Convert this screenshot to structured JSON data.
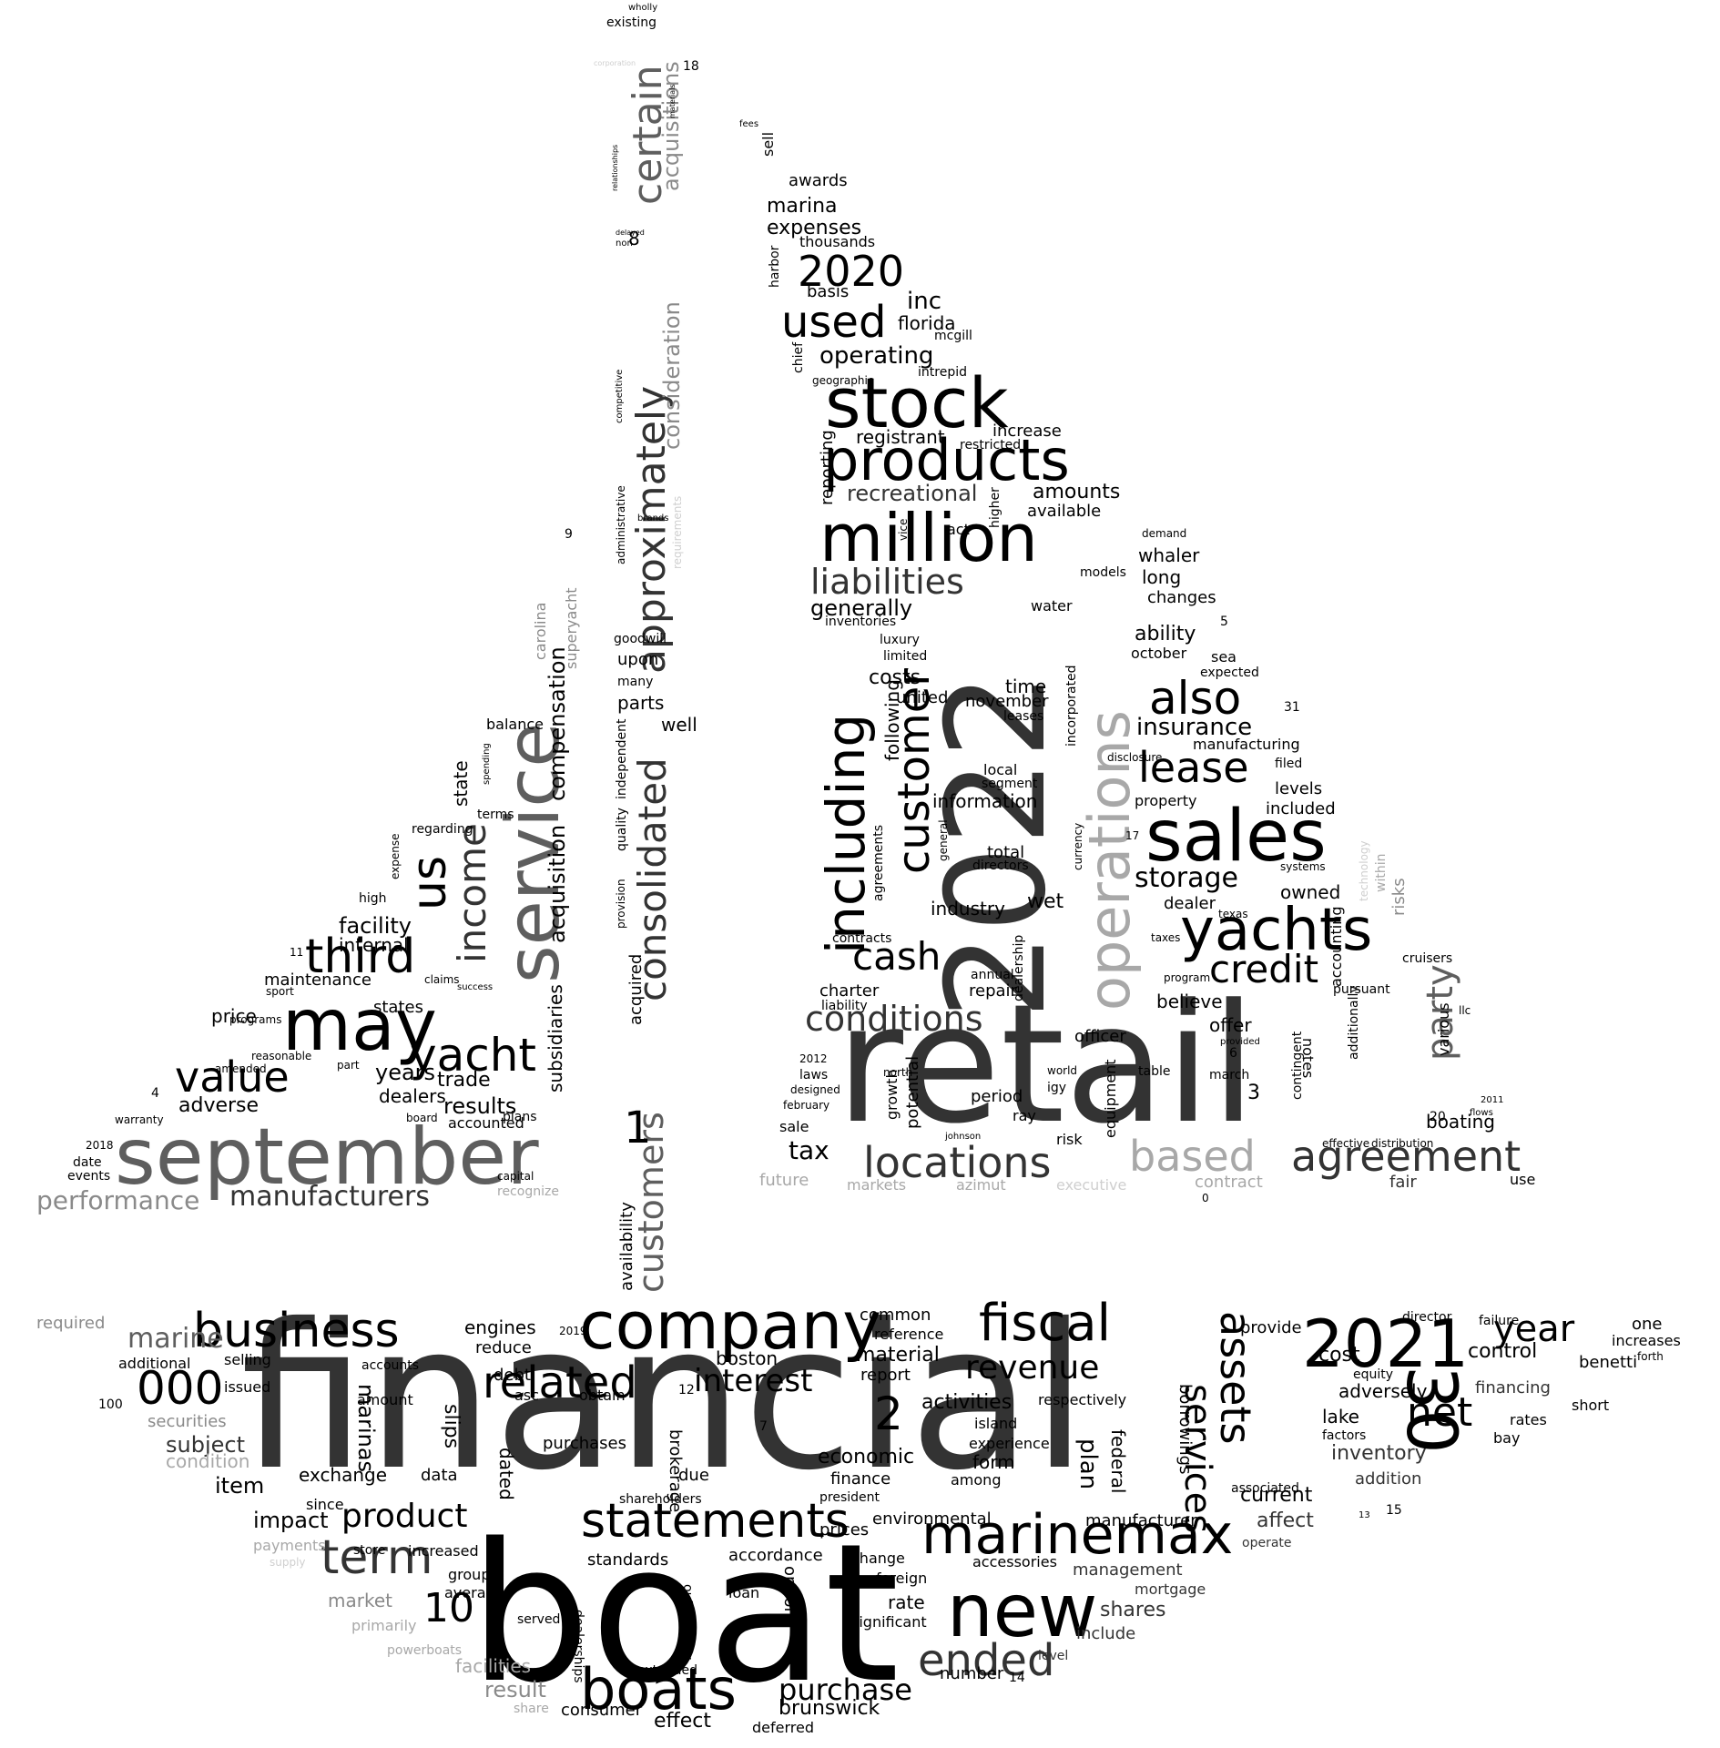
{
  "words": {
    "financial": "financial",
    "boat": "boat",
    "retail": "retail",
    "y2022": "2022",
    "september": "september",
    "company": "company",
    "stock": "stock",
    "million": "million",
    "sales": "sales",
    "products": "products",
    "yachts": "yachts",
    "marinemax": "marinemax",
    "service": "service",
    "may": "may",
    "n30": "30",
    "y2021": "2021",
    "new": "new",
    "statements": "statements",
    "boats": "boats",
    "business": "business",
    "fiscal": "fiscal",
    "approximately": "approximately",
    "consolidated": "consolidated",
    "operations": "operations",
    "including": "including",
    "customer": "customer",
    "locations": "locations",
    "agreement": "agreement",
    "based": "based",
    "ended": "ended",
    "term": "term",
    "related": "related",
    "value": "value",
    "yacht": "yacht",
    "third": "third",
    "us": "us",
    "income": "income",
    "certain": "certain",
    "customers": "customers",
    "credit": "credit",
    "lease": "lease",
    "also": "also",
    "cash": "cash",
    "conditions": "conditions",
    "n000": "000",
    "n10": "10",
    "product": "product",
    "used": "used",
    "y2020": "2020",
    "liabilities": "liabilities",
    "manufacturers": "manufacturers",
    "performance": "performance",
    "party": "party",
    "net": "net",
    "assets": "assets",
    "services": "services",
    "year": "year",
    "revenue": "revenue",
    "interest": "interest",
    "purchase": "purchase",
    "storage": "storage",
    "insurance": "insurance",
    "tax": "tax",
    "marine": "marine",
    "marinas": "marinas",
    "acquisition": "acquisition",
    "compensation": "compensation",
    "acquisitions": "acquisitions",
    "consideration": "consideration",
    "subsidiaries": "subsidiaries",
    "superyacht": "superyacht",
    "carolina": "carolina",
    "recreational": "recreational",
    "operating": "operating",
    "expenses": "expenses",
    "marina": "marina",
    "awards": "awards",
    "inc": "inc",
    "florida": "florida",
    "mcgill": "mcgill",
    "intrepid": "intrepid",
    "registrant": "registrant",
    "increase": "increase",
    "restricted": "restricted",
    "amounts": "amounts",
    "available": "available",
    "whaler": "whaler",
    "generally": "generally",
    "inventories": "inventories",
    "luxury": "luxury",
    "limited": "limited",
    "costs": "costs",
    "united": "united",
    "time": "time",
    "november": "november",
    "leases": "leases",
    "information": "information",
    "industry": "industry",
    "wet": "wet",
    "dealer": "dealer",
    "owned": "owned",
    "believe": "believe",
    "offer": "offer",
    "officer": "officer",
    "table": "table",
    "march": "march",
    "notes": "notes",
    "boating": "boating",
    "repair": "repair",
    "period": "period",
    "ray": "ray",
    "igy": "igy",
    "risk": "risk",
    "sale": "sale",
    "markets": "markets",
    "azimut": "azimut",
    "executive": "executive",
    "contract": "contract",
    "fair": "fair",
    "use": "use",
    "future": "future",
    "long": "long",
    "changes": "changes",
    "ability": "ability",
    "october": "october",
    "sea": "sea",
    "expected": "expected",
    "manufacturing": "manufacturing",
    "filed": "filed",
    "levels": "levels",
    "included": "included",
    "property": "property",
    "systems": "systems",
    "cruisers": "cruisers",
    "pursuant": "pursuant",
    "various": "various",
    "risks": "risks",
    "within": "within",
    "technology": "technology",
    "facility": "facility",
    "internal": "internal",
    "maintenance": "maintenance",
    "price": "price",
    "states": "states",
    "years": "years",
    "results": "results",
    "trade": "trade",
    "dealers": "dealers",
    "accounted": "accounted",
    "adverse": "adverse",
    "balance": "balance",
    "regarding": "regarding",
    "state": "state",
    "terms": "terms",
    "expense": "expense",
    "high": "high",
    "goodwill": "goodwill",
    "upon": "upon",
    "many": "many",
    "parts": "parts",
    "well": "well",
    "acquired": "acquired",
    "availability": "availability",
    "existing": "existing",
    "common": "common",
    "reference": "reference",
    "material": "material",
    "report": "report",
    "activities": "activities",
    "economic": "economic",
    "finance": "finance",
    "president": "president",
    "among": "among",
    "form": "form",
    "experience": "experience",
    "environmental": "environmental",
    "prices": "prices",
    "change": "change",
    "foreign": "foreign",
    "rate": "rate",
    "significant": "significant",
    "accessories": "accessories",
    "management": "management",
    "shares": "shares",
    "include": "include",
    "level": "level",
    "number": "number",
    "brunswick": "brunswick",
    "deferred": "deferred",
    "effect": "effect",
    "consumer": "consumer",
    "result": "result",
    "facilities": "facilities",
    "share": "share",
    "engines": "engines",
    "reduce": "reduce",
    "debt": "debt",
    "asc": "asc",
    "obtain": "obtain",
    "purchases": "purchases",
    "dated": "dated",
    "brokerage": "brokerage",
    "due": "due",
    "standards": "standards",
    "accordance": "accordance",
    "shareholders": "shareholders",
    "boston": "boston",
    "selling": "selling",
    "issued": "issued",
    "securities": "securities",
    "subject": "subject",
    "condition": "condition",
    "item": "item",
    "impact": "impact",
    "payments": "payments",
    "market": "market",
    "primarily": "primarily",
    "powerboats": "powerboats",
    "required": "required",
    "additional": "additional",
    "accounts": "accounts",
    "amount": "amount",
    "exchange": "exchange",
    "data": "data",
    "since": "since",
    "store": "store",
    "increased": "increased",
    "group": "group",
    "average": "average",
    "slips": "slips",
    "provide": "provide",
    "cost": "cost",
    "control": "control",
    "adversely": "adversely",
    "financing": "financing",
    "inventory": "inventory",
    "addition": "addition",
    "current": "current",
    "affect": "affect",
    "operate": "operate",
    "manufacturer": "manufacturer",
    "associated": "associated",
    "borrowings": "borrowings",
    "federal": "federal",
    "plan": "plan",
    "respectively": "respectively",
    "island": "island",
    "lake": "lake",
    "factors": "factors",
    "equity": "equity",
    "benetti": "benetti",
    "short": "short",
    "rates": "rates",
    "bay": "bay",
    "one": "one",
    "increases": "increases",
    "forth": "forth",
    "failure": "failure",
    "director": "director",
    "mortgage": "mortgage",
    "dealership": "dealership",
    "incorporated": "incorporated",
    "accounting": "accounting",
    "contingent": "contingent",
    "additionally": "additionally",
    "reporting": "reporting",
    "following": "following",
    "agreements": "agreements",
    "potential": "potential",
    "growth": "growth",
    "chief": "chief",
    "sell": "sell",
    "fees": "fees",
    "basis": "basis",
    "thousands": "thousands",
    "harbor": "harbor",
    "equipment": "equipment",
    "total": "total",
    "directors": "directors",
    "local": "local",
    "segment": "segment",
    "annual": "annual",
    "charter": "charter",
    "liability": "liability",
    "contracts": "contracts",
    "provision": "provision",
    "quality": "quality",
    "independent": "independent",
    "administrative": "administrative",
    "competitive": "competitive",
    "spending": "spending",
    "recognize": "recognize",
    "capital": "capital",
    "date": "date",
    "events": "events",
    "warranty": "warranty",
    "amended": "amended",
    "programs": "programs",
    "sport": "sport",
    "success": "success",
    "claims": "claims",
    "plans": "plans",
    "board": "board",
    "part": "part",
    "reasonable": "reasonable",
    "loan": "loan",
    "options": "options",
    "outstanding": "outstanding",
    "served": "served",
    "dealerships": "dealerships",
    "extended": "extended",
    "employee": "employee",
    "demand": "demand",
    "models": "models",
    "water": "water",
    "act": "act",
    "vice": "vice",
    "higher": "higher",
    "texas": "texas",
    "taxes": "taxes",
    "program": "program",
    "llc": "llc",
    "north": "north",
    "laws": "laws",
    "designed": "designed",
    "february": "february",
    "johnson": "johnson",
    "world": "world",
    "distribution": "distribution",
    "effective": "effective",
    "flows": "flows",
    "disclosure": "disclosure",
    "currency": "currency",
    "general": "general",
    "geographic": "geographic",
    "provided": "provided",
    "wholly": "wholly",
    "corporation": "corporation",
    "materials": "materials",
    "relationships": "relationships",
    "delayed": "delayed",
    "non": "non",
    "brands": "brands",
    "requirements": "requirements",
    "supply": "supply",
    "n1": "1",
    "n2": "2",
    "n3": "3",
    "n4": "4",
    "n5": "5",
    "n6": "6",
    "n7": "7",
    "n8": "8",
    "n9": "9",
    "n11": "11",
    "n12": "12",
    "n13": "13",
    "n14": "14",
    "n15": "15",
    "n17": "17",
    "n18": "18",
    "n20": "20",
    "n31": "31",
    "n100": "100",
    "n0": "0",
    "y2012": "2012",
    "y2011": "2011",
    "y2018": "2018",
    "y2019": "2019"
  }
}
